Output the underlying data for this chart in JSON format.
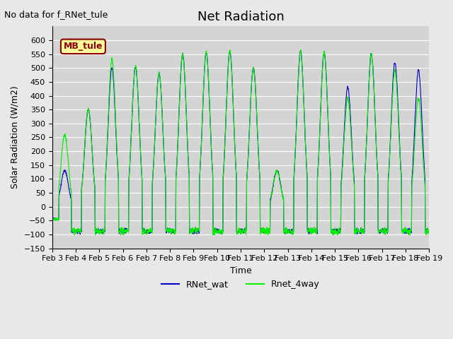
{
  "title": "Net Radiation",
  "xlabel": "Time",
  "ylabel": "Solar Radiation (W/m2)",
  "ylim": [
    -150,
    650
  ],
  "yticks": [
    -150,
    -100,
    -50,
    0,
    50,
    100,
    150,
    200,
    250,
    300,
    350,
    400,
    450,
    500,
    550,
    600
  ],
  "background_color": "#e8e8e8",
  "plot_bg_color": "#d4d4d4",
  "grid_color": "#ffffff",
  "line1_color": "#0000cc",
  "line2_color": "#00ee00",
  "legend1": "RNet_wat",
  "legend2": "Rnet_4way",
  "annotation_text": "No data for f_RNet_tule",
  "legend_box_text": "MB_tule",
  "legend_box_color": "#ffff99",
  "legend_box_border": "#8b0000",
  "n_days": 16,
  "start_day": 3,
  "points_per_hour": 4,
  "peaks_wat": [
    130,
    350,
    500,
    505,
    480,
    550,
    555,
    560,
    500,
    130,
    560,
    555,
    430,
    550,
    520,
    490
  ],
  "peaks_4way": [
    260,
    350,
    530,
    505,
    480,
    550,
    555,
    560,
    500,
    130,
    560,
    555,
    390,
    550,
    490,
    390
  ]
}
